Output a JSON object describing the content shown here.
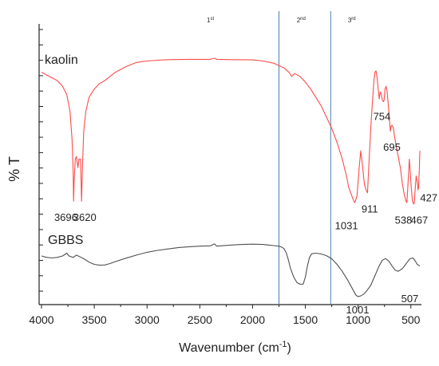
{
  "chart_data": {
    "type": "line",
    "xlabel": "Wavenumber (cm",
    "xlabel_sup": "-1",
    "xlabel_close": ")",
    "ylabel": "% T",
    "xlim": [
      4000,
      400
    ],
    "x_reversed": true,
    "x_ticks": [
      4000,
      3500,
      3000,
      2500,
      2000,
      1500,
      1000,
      500
    ],
    "y_ticks_shown": false,
    "grid": false,
    "series": [
      {
        "name": "kaolin",
        "color": "#ff4a4a",
        "points": [
          [
            4000,
            86
          ],
          [
            3900,
            84
          ],
          [
            3850,
            83
          ],
          [
            3800,
            81
          ],
          [
            3760,
            78
          ],
          [
            3730,
            72
          ],
          [
            3710,
            62
          ],
          [
            3700,
            50
          ],
          [
            3696,
            40
          ],
          [
            3690,
            48
          ],
          [
            3680,
            55
          ],
          [
            3670,
            56
          ],
          [
            3655,
            52
          ],
          [
            3645,
            55
          ],
          [
            3630,
            55
          ],
          [
            3620,
            40
          ],
          [
            3612,
            52
          ],
          [
            3600,
            65
          ],
          [
            3580,
            72
          ],
          [
            3550,
            77
          ],
          [
            3500,
            80
          ],
          [
            3450,
            82
          ],
          [
            3400,
            83
          ],
          [
            3300,
            86
          ],
          [
            3200,
            88
          ],
          [
            3100,
            89.5
          ],
          [
            3000,
            90
          ],
          [
            2900,
            90.3
          ],
          [
            2800,
            90.5
          ],
          [
            2600,
            90.6
          ],
          [
            2400,
            90.6
          ],
          [
            2360,
            91
          ],
          [
            2340,
            90.6
          ],
          [
            2200,
            90.5
          ],
          [
            2000,
            90.4
          ],
          [
            1900,
            90
          ],
          [
            1800,
            89.2
          ],
          [
            1700,
            87.5
          ],
          [
            1650,
            85.8
          ],
          [
            1630,
            84.5
          ],
          [
            1600,
            85.5
          ],
          [
            1550,
            84.5
          ],
          [
            1500,
            82.5
          ],
          [
            1450,
            80
          ],
          [
            1400,
            77
          ],
          [
            1350,
            74
          ],
          [
            1300,
            70
          ],
          [
            1250,
            66
          ],
          [
            1200,
            61
          ],
          [
            1150,
            55
          ],
          [
            1110,
            49
          ],
          [
            1090,
            45
          ],
          [
            1060,
            42
          ],
          [
            1040,
            40
          ],
          [
            1031,
            39.5
          ],
          [
            1010,
            42
          ],
          [
            990,
            52
          ],
          [
            975,
            58
          ],
          [
            960,
            53
          ],
          [
            940,
            46
          ],
          [
            925,
            44
          ],
          [
            911,
            43
          ],
          [
            895,
            55
          ],
          [
            880,
            66
          ],
          [
            865,
            75
          ],
          [
            850,
            83
          ],
          [
            840,
            86
          ],
          [
            830,
            86.5
          ],
          [
            820,
            84
          ],
          [
            810,
            80
          ],
          [
            800,
            76.5
          ],
          [
            790,
            79
          ],
          [
            780,
            78
          ],
          [
            770,
            76
          ],
          [
            760,
            75.5
          ],
          [
            754,
            76
          ],
          [
            745,
            80
          ],
          [
            735,
            81
          ],
          [
            725,
            79
          ],
          [
            715,
            75
          ],
          [
            705,
            70
          ],
          [
            695,
            65
          ],
          [
            685,
            67
          ],
          [
            675,
            67
          ],
          [
            665,
            66
          ],
          [
            655,
            63
          ],
          [
            640,
            60
          ],
          [
            620,
            56
          ],
          [
            600,
            52
          ],
          [
            580,
            46
          ],
          [
            560,
            42
          ],
          [
            545,
            40
          ],
          [
            538,
            39.5
          ],
          [
            525,
            48
          ],
          [
            515,
            55
          ],
          [
            505,
            50
          ],
          [
            497,
            45
          ],
          [
            485,
            40
          ],
          [
            472,
            39
          ],
          [
            467,
            39.5
          ],
          [
            458,
            45
          ],
          [
            450,
            49
          ],
          [
            440,
            47
          ],
          [
            432,
            44
          ],
          [
            427,
            45
          ],
          [
            420,
            52
          ],
          [
            415,
            58
          ]
        ],
        "label": "kaolin"
      },
      {
        "name": "GBBS",
        "color": "#505050",
        "points": [
          [
            4000,
            20.5
          ],
          [
            3950,
            20
          ],
          [
            3900,
            19.8
          ],
          [
            3850,
            20
          ],
          [
            3800,
            20.5
          ],
          [
            3760,
            21.5
          ],
          [
            3740,
            20.5
          ],
          [
            3700,
            20
          ],
          [
            3670,
            20.8
          ],
          [
            3640,
            20.3
          ],
          [
            3600,
            19.5
          ],
          [
            3550,
            18.3
          ],
          [
            3500,
            17.5
          ],
          [
            3450,
            17.2
          ],
          [
            3400,
            17.3
          ],
          [
            3350,
            17.8
          ],
          [
            3300,
            18.5
          ],
          [
            3200,
            19.7
          ],
          [
            3100,
            20.8
          ],
          [
            3000,
            21.8
          ],
          [
            2900,
            22.5
          ],
          [
            2800,
            23
          ],
          [
            2700,
            23.5
          ],
          [
            2600,
            23.8
          ],
          [
            2500,
            24
          ],
          [
            2400,
            24.1
          ],
          [
            2360,
            24.8
          ],
          [
            2340,
            24
          ],
          [
            2200,
            24.4
          ],
          [
            2100,
            24.6
          ],
          [
            2000,
            24.7
          ],
          [
            1900,
            24.6
          ],
          [
            1850,
            24.4
          ],
          [
            1800,
            24.2
          ],
          [
            1750,
            24
          ],
          [
            1720,
            23.6
          ],
          [
            1700,
            23
          ],
          [
            1680,
            21.5
          ],
          [
            1660,
            19
          ],
          [
            1640,
            16
          ],
          [
            1610,
            13
          ],
          [
            1580,
            11
          ],
          [
            1550,
            10.4
          ],
          [
            1520,
            10.5
          ],
          [
            1500,
            13
          ],
          [
            1480,
            17
          ],
          [
            1460,
            20
          ],
          [
            1440,
            21.3
          ],
          [
            1400,
            21.5
          ],
          [
            1350,
            21.2
          ],
          [
            1300,
            20.6
          ],
          [
            1250,
            19.5
          ],
          [
            1200,
            17.5
          ],
          [
            1150,
            15
          ],
          [
            1100,
            12
          ],
          [
            1050,
            8.5
          ],
          [
            1020,
            6.5
          ],
          [
            1001,
            6
          ],
          [
            980,
            6.2
          ],
          [
            950,
            6.8
          ],
          [
            920,
            8
          ],
          [
            880,
            10
          ],
          [
            840,
            13.5
          ],
          [
            800,
            17
          ],
          [
            770,
            19
          ],
          [
            740,
            19.6
          ],
          [
            710,
            18.7
          ],
          [
            680,
            17
          ],
          [
            650,
            15.5
          ],
          [
            620,
            15
          ],
          [
            580,
            16
          ],
          [
            540,
            18
          ],
          [
            510,
            19.5
          ],
          [
            480,
            19.8
          ],
          [
            460,
            18.8
          ],
          [
            440,
            17.5
          ],
          [
            420,
            17
          ],
          [
            415,
            17
          ]
        ],
        "label": "GBBS"
      }
    ],
    "vertical_lines": [
      1750,
      1260
    ],
    "region_labels": [
      {
        "base": "1",
        "sup": "st",
        "x": 2400
      },
      {
        "base": "2",
        "sup": "nd",
        "x": 1540
      },
      {
        "base": "3",
        "sup": "rd",
        "x": 1060
      }
    ],
    "annotations": [
      {
        "text": "3696",
        "x": 3770,
        "y": 33
      },
      {
        "text": "3620",
        "x": 3590,
        "y": 33
      },
      {
        "text": "754",
        "x": 775,
        "y": 69
      },
      {
        "text": "695",
        "x": 680,
        "y": 58
      },
      {
        "text": "911",
        "x": 890,
        "y": 36
      },
      {
        "text": "427",
        "x": 330,
        "y": 40
      },
      {
        "text": "1031",
        "x": 1110,
        "y": 30
      },
      {
        "text": "538",
        "x": 570,
        "y": 32
      },
      {
        "text": "467",
        "x": 420,
        "y": 32
      },
      {
        "text": "1001",
        "x": 1005,
        "y": 0
      },
      {
        "text": "507",
        "x": 510,
        "y": 4
      }
    ]
  }
}
